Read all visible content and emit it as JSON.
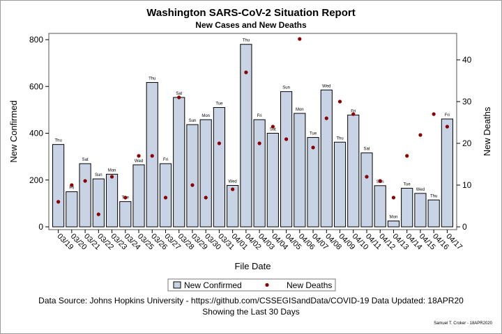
{
  "title": "Washington SARS-CoV-2 Situation Report",
  "subtitle": "New Cases and New Deaths",
  "footnote_source": "Data Source: Johns Hopkins University - https://github.com/CSSEGISandData/COVID-19 Data Updated: 18APR20",
  "footnote_range": "Showing the Last 30 Days",
  "credit": "Samuel T. Croker - 18APR2020",
  "colors": {
    "bar_fill": "#c8d3e6",
    "bar_stroke": "#000000",
    "marker": "#8b0000"
  },
  "chart_data": {
    "type": "bar",
    "title": "Washington SARS-CoV-2 Situation Report",
    "subtitle": "New Cases and New Deaths",
    "xlabel": "File Date",
    "ylabel": "New Confirmed",
    "y2label": "New Deaths",
    "ylim": [
      0,
      800
    ],
    "y2lim": [
      0,
      40
    ],
    "yticks": [
      0,
      200,
      400,
      600,
      800
    ],
    "y2ticks": [
      0,
      10,
      20,
      30,
      40
    ],
    "legend_position": "bottom",
    "categories": [
      "03/19",
      "03/20",
      "03/21",
      "03/22",
      "03/23",
      "03/24",
      "03/25",
      "03/26",
      "03/27",
      "03/28",
      "03/29",
      "03/30",
      "03/31",
      "04/01",
      "04/02",
      "04/03",
      "04/04",
      "04/05",
      "04/06",
      "04/07",
      "04/08",
      "04/09",
      "04/10",
      "04/11",
      "04/12",
      "04/13",
      "04/14",
      "04/15",
      "04/16",
      "04/17"
    ],
    "weekdays": [
      "Thu",
      "Fri",
      "Sat",
      "Sun",
      "Mon",
      "Tue",
      "Wed",
      "Thu",
      "Fri",
      "Sat",
      "Sun",
      "Mon",
      "Tue",
      "Wed",
      "Thu",
      "Fri",
      "Sat",
      "Sun",
      "Mon",
      "Tue",
      "Wed",
      "Thu",
      "Fri",
      "Sat",
      "Sun",
      "Mon",
      "Tue",
      "Wed",
      "Thu",
      "Fri"
    ],
    "series": [
      {
        "name": "New Confirmed",
        "type": "bar",
        "axis": "left",
        "values": [
          352,
          150,
          270,
          205,
          225,
          108,
          265,
          617,
          270,
          553,
          437,
          458,
          510,
          177,
          780,
          458,
          400,
          578,
          485,
          382,
          585,
          362,
          478,
          316,
          176,
          25,
          165,
          143,
          115,
          461
        ]
      },
      {
        "name": "New Deaths",
        "type": "scatter",
        "axis": "right",
        "values": [
          6,
          10,
          11,
          3,
          12,
          7,
          17,
          17,
          7,
          31,
          10,
          7,
          20,
          9,
          37,
          20,
          24,
          21,
          45,
          19,
          26,
          30,
          27,
          12,
          11,
          7,
          17,
          22,
          27,
          24
        ]
      }
    ]
  }
}
